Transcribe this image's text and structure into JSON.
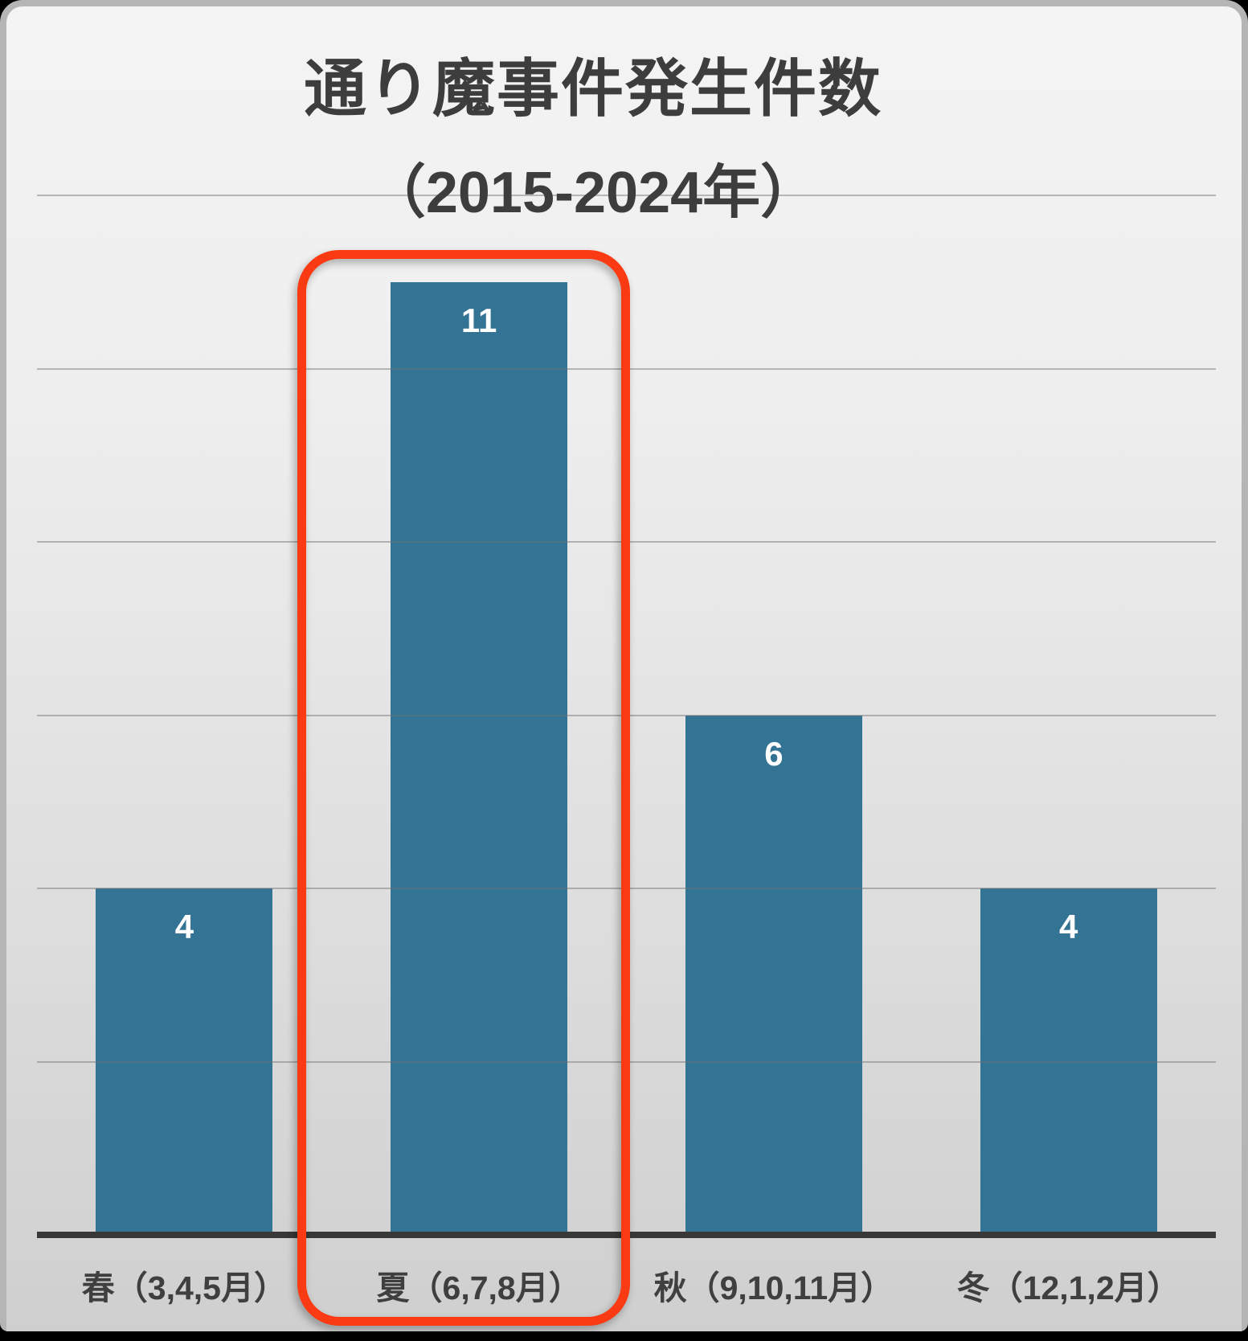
{
  "chart_data": {
    "type": "bar",
    "title": "通り魔事件発生件数",
    "subtitle": "（2015‐2024年）",
    "categories": [
      "春（3,4,5月）",
      "夏（6,7,8月）",
      "秋（9,10,11月）",
      "冬（12,1,2月）"
    ],
    "values": [
      4,
      11,
      6,
      4
    ],
    "data_labels": [
      "4",
      "11",
      "6",
      "4"
    ],
    "ylim": [
      0,
      12
    ],
    "gridline_values": [
      2,
      4,
      6,
      8,
      10,
      12
    ],
    "grid": "on",
    "legend": "none",
    "xlabel": "",
    "ylabel": "",
    "bar_color": "#337394",
    "value_label_color": "#ffffff",
    "title_color": "#3d3d3d",
    "axis_color": "#383838",
    "highlight": {
      "highlighted_category": "夏（6,7,8月）",
      "highlighted_index": 1,
      "ring_color": "#fa3a12"
    }
  }
}
